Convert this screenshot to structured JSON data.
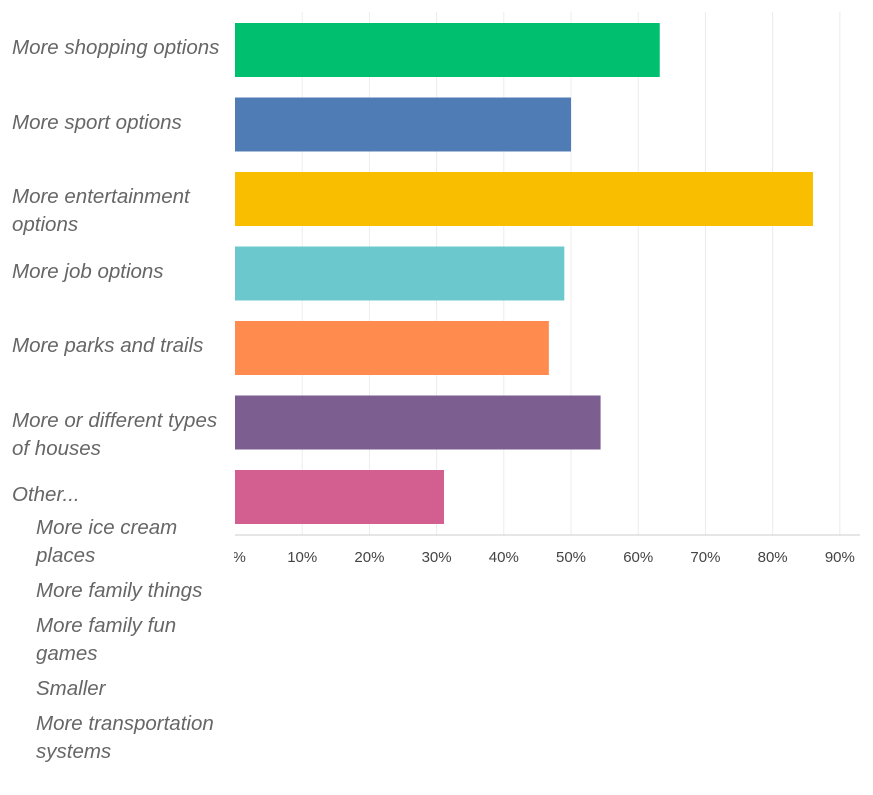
{
  "chart_data": {
    "type": "bar",
    "orientation": "horizontal",
    "categories": [
      "More shopping options",
      "More sport options",
      "More entertainment options",
      "More job options",
      "More parks and trails",
      "More or different types of houses",
      "Other..."
    ],
    "values": [
      63.2,
      50,
      86,
      49,
      46.7,
      54.4,
      31.1
    ],
    "colors": [
      "#00bf6f",
      "#507cb6",
      "#f9be00",
      "#6bc8cd",
      "#ff8b4f",
      "#7d5e90",
      "#d25f90"
    ],
    "xlim": [
      0,
      93
    ],
    "xticks": [
      {
        "value": 0,
        "label": "0%"
      },
      {
        "value": 10,
        "label": "10%"
      },
      {
        "value": 20,
        "label": "20%"
      },
      {
        "value": 30,
        "label": "30%"
      },
      {
        "value": 40,
        "label": "40%"
      },
      {
        "value": 50,
        "label": "50%"
      },
      {
        "value": 60,
        "label": "60%"
      },
      {
        "value": 70,
        "label": "70%"
      },
      {
        "value": 80,
        "label": "80%"
      },
      {
        "value": 90,
        "label": "90%"
      }
    ],
    "grid": true,
    "other_responses": [
      "More ice cream places",
      "More family things",
      "More family fun games",
      "Smaller",
      "More transportation systems"
    ]
  }
}
